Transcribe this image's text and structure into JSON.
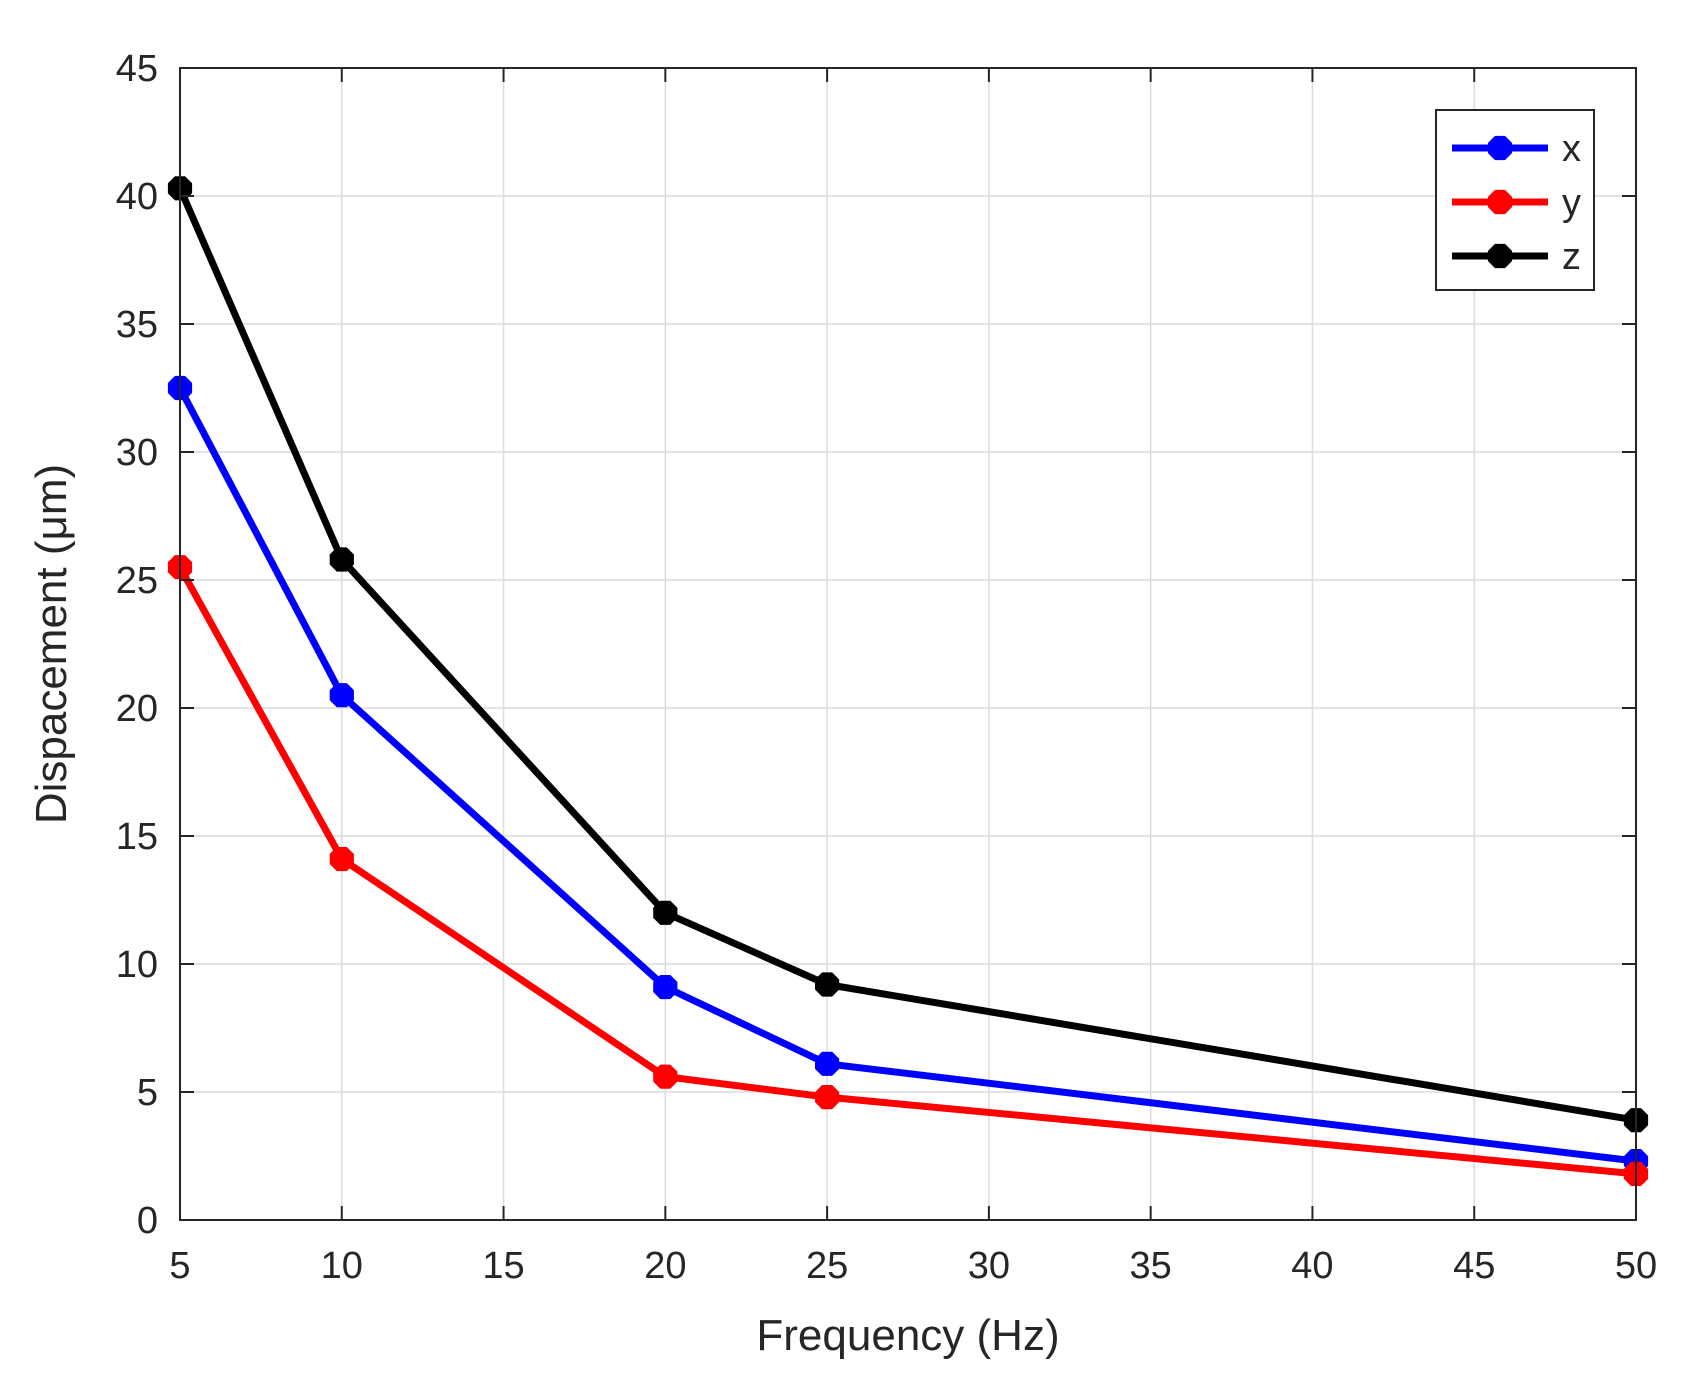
{
  "chart_data": {
    "type": "line",
    "title": "",
    "xlabel": "Frequency (Hz)",
    "ylabel": "Dispacement (μm)",
    "xlim": [
      5,
      50
    ],
    "ylim": [
      0,
      45
    ],
    "xticks": [
      5,
      10,
      15,
      20,
      25,
      30,
      35,
      40,
      45,
      50
    ],
    "yticks": [
      0,
      5,
      10,
      15,
      20,
      25,
      30,
      35,
      40,
      45
    ],
    "grid": true,
    "legend_location": "top-right",
    "x": [
      5,
      10,
      20,
      25,
      50
    ],
    "series": [
      {
        "name": "x",
        "color": "#0000ff",
        "values": [
          32.5,
          20.5,
          9.1,
          6.1,
          2.3
        ]
      },
      {
        "name": "y",
        "color": "#ff0000",
        "values": [
          25.5,
          14.1,
          5.6,
          4.8,
          1.8
        ]
      },
      {
        "name": "z",
        "color": "#000000",
        "values": [
          40.3,
          25.8,
          12.0,
          9.2,
          3.9
        ]
      }
    ]
  }
}
